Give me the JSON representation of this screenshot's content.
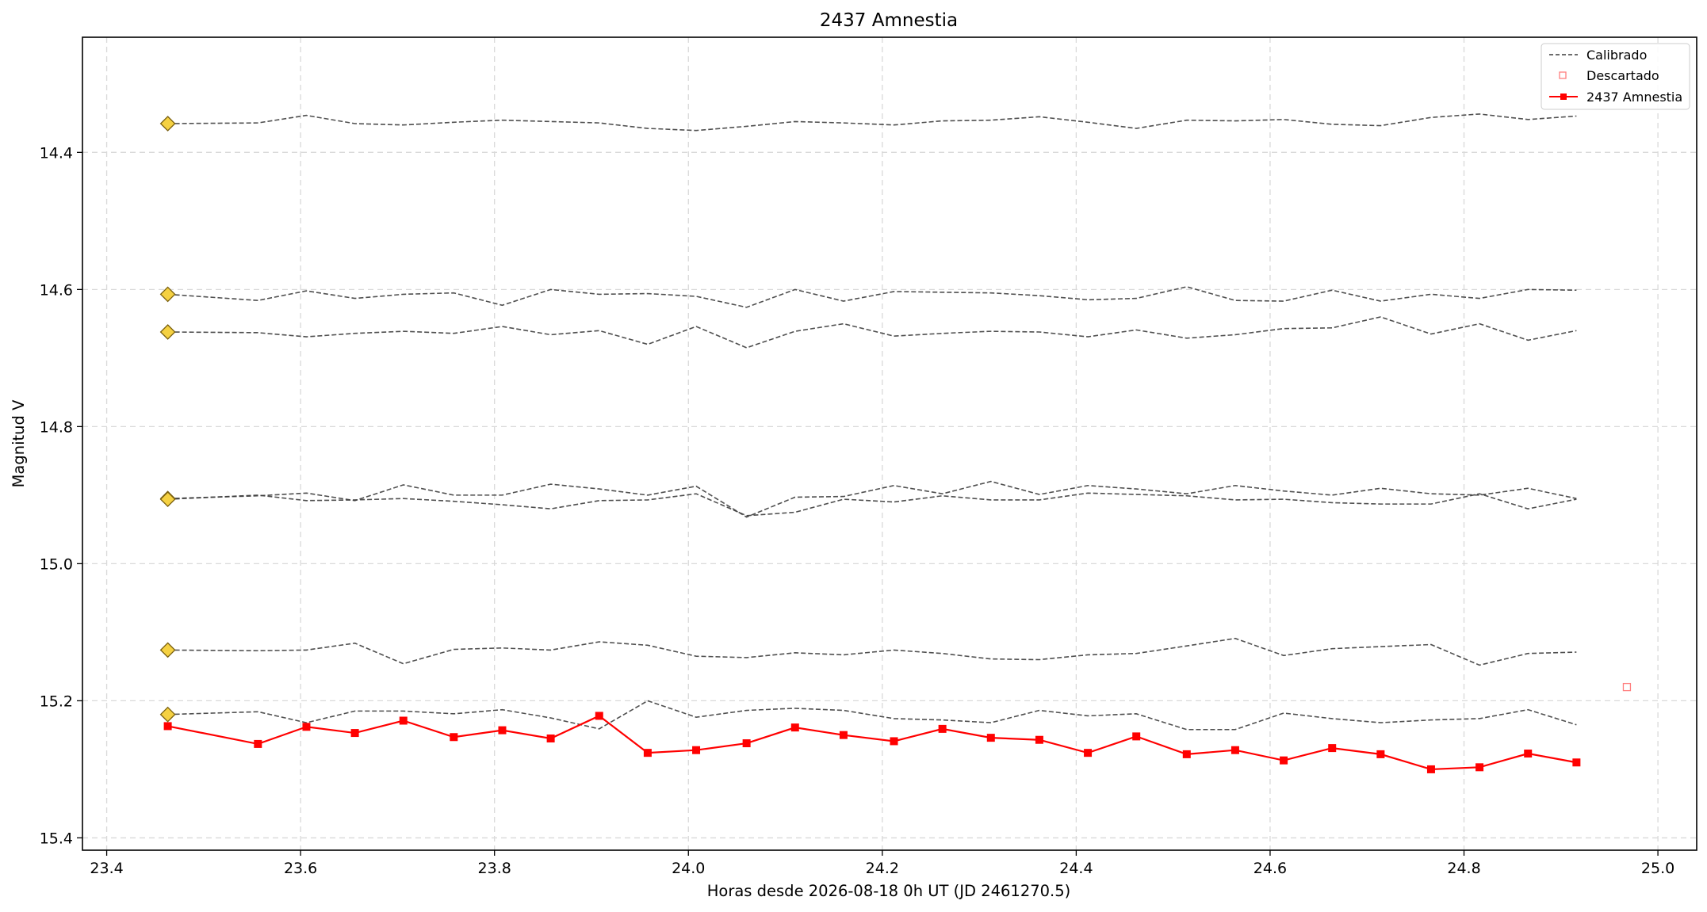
{
  "chart_data": {
    "type": "line",
    "title": "2437 Amnestia",
    "xlabel": "Horas desde 2026-08-18 0h UT (JD 2461270.5)",
    "ylabel": "Magnitud V",
    "xlim": [
      23.375,
      25.04
    ],
    "ylim": [
      15.418,
      14.232
    ],
    "y_inverted": true,
    "grid": true,
    "x_ticks": [
      "23.4",
      "23.6",
      "23.8",
      "24.0",
      "24.2",
      "24.4",
      "24.6",
      "24.8",
      "25.0"
    ],
    "y_ticks": [
      "14.4",
      "14.6",
      "14.8",
      "15.0",
      "15.2",
      "15.4"
    ],
    "legend_position": "top-right",
    "legend": [
      "Calibrado",
      "Descartado",
      "2437 Amnestia"
    ],
    "x": [
      23.463,
      23.556,
      23.606,
      23.656,
      23.706,
      23.758,
      23.808,
      23.858,
      23.908,
      23.958,
      24.008,
      24.06,
      24.11,
      24.16,
      24.212,
      24.262,
      24.312,
      24.362,
      24.412,
      24.462,
      24.514,
      24.564,
      24.614,
      24.664,
      24.714,
      24.766,
      24.816,
      24.866,
      24.916
    ],
    "series": [
      {
        "name": "2437 Amnestia",
        "style": "solid-square",
        "color": "#ff0000",
        "values": [
          15.237,
          15.263,
          15.238,
          15.247,
          15.229,
          15.253,
          15.243,
          15.255,
          15.222,
          15.276,
          15.272,
          15.262,
          15.239,
          15.25,
          15.259,
          15.241,
          15.254,
          15.257,
          15.276,
          15.252,
          15.278,
          15.272,
          15.287,
          15.269,
          15.278,
          15.3,
          15.297,
          15.277,
          15.29
        ]
      },
      {
        "style": "dashed-calibrated",
        "color": "#3c3c3c",
        "values": [
          14.358,
          14.357,
          14.346,
          14.358,
          14.36,
          14.356,
          14.353,
          14.355,
          14.357,
          14.365,
          14.368,
          14.362,
          14.355,
          14.357,
          14.36,
          14.354,
          14.353,
          14.348,
          14.356,
          14.365,
          14.353,
          14.354,
          14.352,
          14.359,
          14.361,
          14.349,
          14.344,
          14.352,
          14.347
        ]
      },
      {
        "style": "dashed-calibrated",
        "color": "#3c3c3c",
        "values": [
          14.607,
          14.616,
          14.602,
          14.613,
          14.607,
          14.605,
          14.623,
          14.6,
          14.607,
          14.606,
          14.61,
          14.626,
          14.6,
          14.617,
          14.603,
          14.604,
          14.605,
          14.609,
          14.615,
          14.613,
          14.596,
          14.616,
          14.617,
          14.601,
          14.617,
          14.607,
          14.613,
          14.6,
          14.601
        ]
      },
      {
        "style": "dashed-calibrated",
        "color": "#3c3c3c",
        "values": [
          14.662,
          14.663,
          14.669,
          14.664,
          14.661,
          14.664,
          14.654,
          14.666,
          14.66,
          14.68,
          14.654,
          14.685,
          14.661,
          14.65,
          14.668,
          14.664,
          14.661,
          14.662,
          14.669,
          14.659,
          14.671,
          14.666,
          14.657,
          14.656,
          14.64,
          14.665,
          14.65,
          14.674,
          14.66
        ]
      },
      {
        "style": "dashed-calibrated",
        "color": "#3c3c3c",
        "values": [
          14.905,
          14.901,
          14.897,
          14.908,
          14.885,
          14.9,
          14.9,
          14.884,
          14.891,
          14.9,
          14.887,
          14.932,
          14.903,
          14.902,
          14.886,
          14.898,
          14.88,
          14.899,
          14.886,
          14.891,
          14.898,
          14.886,
          14.894,
          14.9,
          14.89,
          14.898,
          14.9,
          14.89,
          14.905
        ]
      },
      {
        "style": "dashed-calibrated",
        "color": "#3c3c3c",
        "values": [
          14.906,
          14.9,
          14.908,
          14.907,
          14.905,
          14.909,
          14.914,
          14.92,
          14.908,
          14.907,
          14.898,
          14.93,
          14.925,
          14.906,
          14.91,
          14.901,
          14.907,
          14.907,
          14.897,
          14.899,
          14.901,
          14.907,
          14.906,
          14.911,
          14.913,
          14.913,
          14.898,
          14.92,
          14.906
        ]
      },
      {
        "style": "dashed-calibrated",
        "color": "#3c3c3c",
        "values": [
          15.126,
          15.127,
          15.126,
          15.116,
          15.146,
          15.125,
          15.123,
          15.126,
          15.114,
          15.119,
          15.135,
          15.137,
          15.13,
          15.133,
          15.126,
          15.131,
          15.139,
          15.14,
          15.133,
          15.131,
          15.12,
          15.109,
          15.134,
          15.124,
          15.121,
          15.118,
          15.148,
          15.131,
          15.129
        ]
      },
      {
        "style": "dashed-calibrated",
        "color": "#3c3c3c",
        "values": [
          15.22,
          15.216,
          15.232,
          15.215,
          15.215,
          15.219,
          15.213,
          15.225,
          15.241,
          15.2,
          15.224,
          15.214,
          15.211,
          15.214,
          15.226,
          15.228,
          15.232,
          15.214,
          15.222,
          15.219,
          15.242,
          15.242,
          15.218,
          15.226,
          15.232,
          15.228,
          15.226,
          15.213,
          15.235
        ]
      }
    ],
    "reference_markers": {
      "style": "yellow-diamond",
      "color": "#f5d142",
      "x": 23.463,
      "values": [
        14.358,
        14.607,
        14.662,
        14.905,
        14.906,
        15.126,
        15.22
      ]
    },
    "discarded_points": {
      "style": "open-square",
      "color": "#ff8080",
      "x": [
        24.968
      ],
      "values": [
        15.18
      ]
    }
  }
}
